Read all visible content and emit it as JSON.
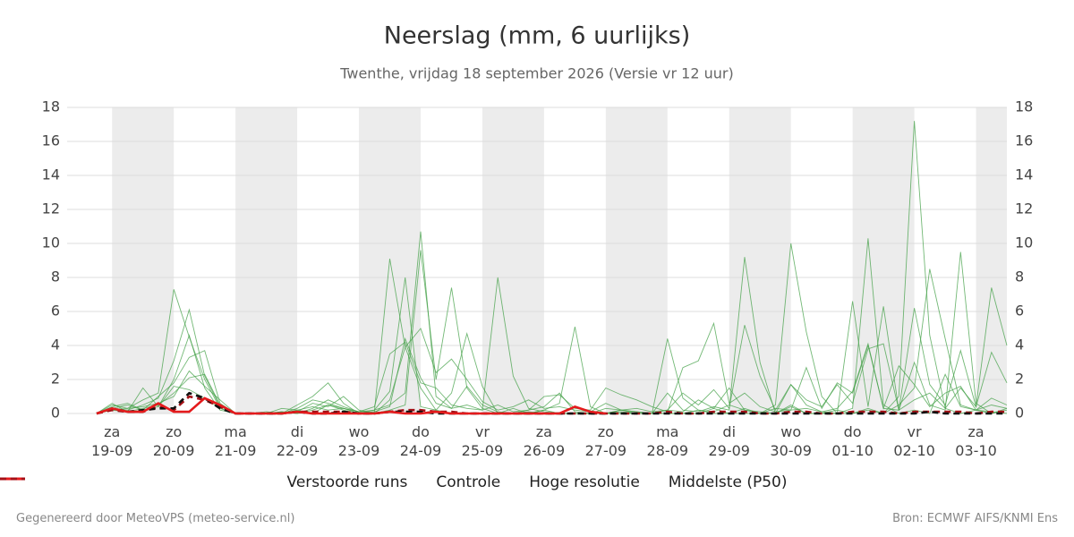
{
  "chart_data": {
    "type": "line",
    "title": "Neerslag (mm, 6 uurlijks)",
    "subtitle": "Twenthe, vrijdag 18 september 2026 (Versie vr 12 uur)",
    "categories": [
      null,
      "za\n19-09",
      null,
      null,
      null,
      "zo\n20-09",
      null,
      null,
      null,
      "ma\n21-09",
      null,
      null,
      null,
      "di\n22-09",
      null,
      null,
      null,
      "wo\n23-09",
      null,
      null,
      null,
      "do\n24-09",
      null,
      null,
      null,
      "vr\n25-09",
      null,
      null,
      null,
      "za\n26-09",
      null,
      null,
      null,
      "zo\n27-09",
      null,
      null,
      null,
      "ma\n28-09",
      null,
      null,
      null,
      "di\n29-09",
      null,
      null,
      null,
      "wo\n30-09",
      null,
      null,
      null,
      "do\n01-10",
      null,
      null,
      null,
      "vr\n02-10",
      null,
      null,
      null,
      "za\n03-10",
      null,
      null
    ],
    "ensemble": {
      "name": "Verstoorde runs",
      "color": "#43a047",
      "members": [
        [
          0,
          0.5,
          0.3,
          0.8,
          1.2,
          7.3,
          4.5,
          2.0,
          0.3,
          0,
          0,
          0,
          0,
          0.2,
          0,
          0.5,
          0.2,
          0,
          0.1,
          9.1,
          3.9,
          1.5,
          0.2,
          0,
          0,
          0,
          0,
          0,
          0.1,
          0,
          0,
          0,
          0,
          0,
          0.1,
          0,
          0,
          0,
          0,
          0,
          0.3,
          0,
          0,
          0,
          0,
          0.5,
          0,
          0,
          0,
          0,
          0.2,
          0,
          1.0,
          17.2,
          4.6,
          0.3,
          0,
          0.2,
          0.1,
          0
        ],
        [
          0,
          0.3,
          0.2,
          0.5,
          0.9,
          3.1,
          6.1,
          2.2,
          0.4,
          0,
          0,
          0,
          0.1,
          0,
          0.3,
          0.8,
          0.4,
          0.1,
          0.2,
          0.5,
          1.2,
          10.7,
          1.0,
          0.3,
          0.5,
          0.2,
          8.0,
          2.2,
          0.3,
          0.1,
          0,
          0,
          0,
          0,
          0.2,
          0,
          0,
          1.2,
          0.2,
          0.1,
          0.4,
          0.2,
          9.2,
          3.0,
          0,
          0.4,
          0,
          0,
          0.2,
          0,
          0.3,
          0,
          0.5,
          1.5,
          8.5,
          4.4,
          0.5,
          0.2,
          0,
          0.3
        ],
        [
          0,
          0.6,
          0.1,
          1.5,
          0.4,
          2.0,
          4.6,
          1.5,
          0.2,
          0,
          0,
          0,
          0,
          0.1,
          0.6,
          0.4,
          1.0,
          0.2,
          0,
          0.2,
          0.5,
          9.6,
          2.0,
          7.4,
          1.5,
          0.3,
          0,
          0,
          0,
          0.2,
          0,
          0,
          0,
          0,
          0,
          0,
          0,
          0,
          0,
          0.2,
          0,
          0,
          0.3,
          0,
          0.5,
          10.0,
          4.8,
          1.0,
          0,
          0.3,
          10.3,
          0.5,
          0,
          0.2,
          0,
          2.3,
          0.4,
          0.2,
          0.5,
          0.3
        ],
        [
          0,
          0.4,
          0.6,
          0.2,
          1.0,
          1.8,
          3.3,
          3.7,
          0.6,
          0,
          0,
          0.1,
          0,
          0.5,
          1.0,
          1.8,
          0.6,
          0,
          0.2,
          1.3,
          8.0,
          0.4,
          0.2,
          1.2,
          4.7,
          1.6,
          0,
          0.3,
          0,
          0.2,
          0.6,
          5.1,
          0.4,
          0,
          0.2,
          0.1,
          0,
          4.4,
          0.9,
          0.2,
          0.1,
          0.5,
          0.2,
          0.1,
          0,
          1.7,
          0.5,
          0.1,
          0.3,
          1.3,
          4.1,
          0.3,
          0.2,
          3.0,
          0.5,
          0.2,
          9.5,
          0.6,
          0,
          0.2
        ],
        [
          0,
          0.2,
          0.3,
          0.4,
          0.6,
          1.0,
          2.5,
          1.6,
          0.8,
          0,
          0,
          0,
          0.3,
          0.2,
          0.4,
          0.2,
          0.3,
          0.1,
          0.4,
          3.5,
          4.2,
          1.8,
          1.5,
          0.5,
          0.3,
          0.2,
          0.5,
          0.1,
          0.2,
          1.0,
          1.1,
          0.3,
          0.2,
          1.5,
          1.1,
          0.8,
          0.4,
          0.1,
          2.7,
          3.1,
          5.3,
          0.6,
          1.2,
          0.4,
          0.1,
          0.2,
          0.3,
          0.1,
          0,
          6.6,
          0.4,
          6.3,
          0.2,
          0.8,
          1.2,
          0.3,
          1.5,
          0.4,
          7.4,
          4.0
        ],
        [
          0,
          0.3,
          0.5,
          0.2,
          0.4,
          1.6,
          1.4,
          0.9,
          0.3,
          0,
          0,
          0,
          0,
          0.3,
          0.8,
          0.6,
          0.3,
          0.1,
          0,
          0.8,
          3.9,
          5.0,
          2.4,
          3.2,
          2.0,
          0.7,
          0.2,
          0.4,
          0.8,
          0.3,
          0.4,
          0.2,
          0.1,
          0.6,
          0.2,
          0.3,
          0.1,
          0.2,
          1.2,
          0.5,
          1.4,
          0.3,
          5.2,
          2.2,
          0.2,
          1.7,
          0.8,
          0.4,
          1.7,
          0.6,
          3.8,
          4.1,
          0.2,
          6.2,
          1.7,
          0.5,
          3.7,
          0.4,
          3.6,
          1.8
        ],
        [
          0,
          0.2,
          0.1,
          0.3,
          0.5,
          1.2,
          2.1,
          2.3,
          0.5,
          0,
          0,
          0,
          0.1,
          0,
          0.2,
          0.5,
          0.3,
          0,
          0.1,
          0.4,
          4.4,
          2.1,
          0.6,
          0.3,
          1.6,
          0.5,
          0.1,
          0,
          0.2,
          0.4,
          1.2,
          0.1,
          0,
          0.3,
          0.2,
          0.1,
          0,
          0.2,
          0.1,
          0.8,
          0.3,
          1.5,
          0.2,
          0,
          0.3,
          0.2,
          2.7,
          0.3,
          1.8,
          1.2,
          4.0,
          0.3,
          2.8,
          1.7,
          0.4,
          1.2,
          1.6,
          0.2,
          0.9,
          0.5
        ]
      ]
    },
    "series": [
      {
        "name": "Controle",
        "color": "#111111",
        "dash": true,
        "values": [
          0,
          0.3,
          0.1,
          0.2,
          0.3,
          0.3,
          1.2,
          0.9,
          0.3,
          0,
          0,
          0,
          0,
          0.1,
          0,
          0,
          0.1,
          0,
          0,
          0.1,
          0.1,
          0.1,
          0,
          0,
          0,
          0,
          0,
          0,
          0,
          0,
          0,
          0,
          0,
          0,
          0,
          0,
          0,
          0,
          0,
          0,
          0,
          0,
          0,
          0,
          0,
          0,
          0,
          0,
          0,
          0,
          0,
          0,
          0,
          0,
          0.1,
          0,
          0,
          0,
          0,
          0
        ]
      },
      {
        "name": "Hoge resolutie",
        "color": "#e41a1c",
        "dash": false,
        "values": [
          0,
          0.3,
          0.1,
          0.1,
          0.6,
          0.1,
          0.1,
          0.9,
          0.5,
          0,
          0,
          0,
          0,
          0.1,
          0,
          0,
          0,
          0,
          0,
          0.1,
          0,
          0,
          0.1,
          0,
          0,
          0,
          0,
          0,
          0,
          0,
          0,
          0.4,
          0.1,
          0,
          null,
          null,
          null,
          null,
          null,
          null,
          null,
          null,
          null,
          null,
          null,
          null,
          null,
          null,
          null,
          null,
          null,
          null,
          null,
          null,
          null,
          null,
          null,
          null,
          null,
          null
        ]
      },
      {
        "name": "Middelste (P50)",
        "color": "#a50f15",
        "dash": true,
        "values": [
          0,
          0.2,
          0.1,
          0.1,
          0.4,
          0.2,
          1.0,
          0.8,
          0.4,
          0,
          0,
          0,
          0,
          0.1,
          0.1,
          0.1,
          0.1,
          0,
          0,
          0.1,
          0.2,
          0.2,
          0.1,
          0.1,
          0,
          0,
          0,
          0,
          0,
          0,
          0,
          0,
          0,
          0,
          0,
          0,
          0,
          0.1,
          0,
          0,
          0.1,
          0.1,
          0.1,
          0,
          0,
          0.1,
          0.1,
          0,
          0,
          0.1,
          0.1,
          0.1,
          0,
          0.1,
          0.1,
          0.1,
          0.1,
          0,
          0.1,
          0.1
        ]
      }
    ],
    "ylim": [
      0,
      18
    ],
    "yticks": [
      0,
      2,
      4,
      6,
      8,
      10,
      12,
      14,
      16,
      18
    ],
    "y2lim": [
      0,
      18
    ],
    "y2ticks": [
      0,
      2,
      4,
      6,
      8,
      10,
      12,
      14,
      16,
      18
    ],
    "grid": true,
    "legend": "bottom"
  },
  "footer": {
    "left": "Gegenereerd door MeteoVPS (meteo-service.nl)",
    "right": "Bron: ECMWF AIFS/KNMI Ens"
  }
}
